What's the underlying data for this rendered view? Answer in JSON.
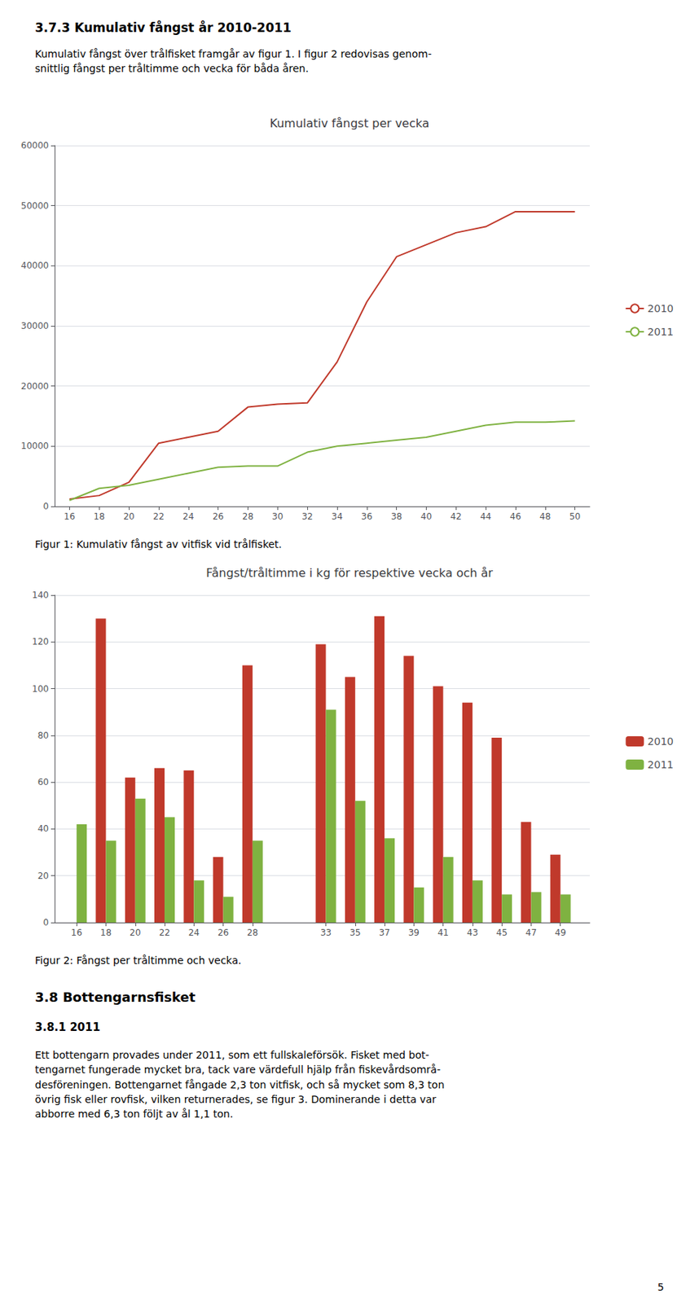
{
  "heading": "3.7.3   Kumulativ fångst år 2010-2011",
  "intro_text": "Kumulativ fångst över trålfisket framgår av figur 1. I figur 2 redovisas genom-\nsnittlig fångst per tråltimme och vecka för båda åren.",
  "chart_data": [
    {
      "type": "line",
      "title": "Kumulativ fångst per vecka",
      "x": [
        16,
        18,
        20,
        22,
        24,
        26,
        28,
        30,
        32,
        34,
        36,
        38,
        40,
        42,
        44,
        46,
        48,
        50
      ],
      "series": [
        {
          "name": "2010",
          "color": "#c0392b",
          "values": [
            1200,
            1800,
            4000,
            10500,
            11500,
            12500,
            16500,
            17000,
            17200,
            24000,
            34000,
            41500,
            43500,
            45500,
            46500,
            49000,
            49000,
            49000
          ]
        },
        {
          "name": "2011",
          "color": "#7fb241",
          "values": [
            1000,
            3000,
            3500,
            4500,
            5500,
            6500,
            6700,
            6700,
            9000,
            10000,
            10500,
            11000,
            11500,
            12500,
            13500,
            14000,
            14000,
            14200
          ]
        }
      ],
      "xlim": [
        15,
        51
      ],
      "xticks": [
        16,
        18,
        20,
        22,
        24,
        26,
        28,
        30,
        32,
        34,
        36,
        38,
        40,
        42,
        44,
        46,
        48,
        50
      ],
      "ylim": [
        0,
        60000
      ],
      "yticks": [
        0,
        10000,
        20000,
        30000,
        40000,
        50000,
        60000
      ],
      "grid": true,
      "legend": "right",
      "caption": "Figur 1: Kumulativ fångst av vitfisk vid trålfisket."
    },
    {
      "type": "bar",
      "title": "Fångst/tråltimme i kg för respektive vecka och år",
      "x": [
        16,
        18,
        20,
        22,
        24,
        26,
        28,
        33,
        35,
        37,
        39,
        41,
        43,
        45,
        47,
        49
      ],
      "series": [
        {
          "name": "2010",
          "color": "#c0392b",
          "values": [
            0,
            130,
            62,
            66,
            65,
            28,
            110,
            119,
            105,
            131,
            114,
            101,
            94,
            79,
            43,
            29
          ]
        },
        {
          "name": "2011",
          "color": "#7fb241",
          "values": [
            42,
            35,
            53,
            45,
            18,
            11,
            35,
            91,
            52,
            36,
            15,
            28,
            18,
            12,
            13,
            12
          ]
        }
      ],
      "xlim": [
        14.5,
        51
      ],
      "xticks": [
        16,
        18,
        20,
        22,
        24,
        26,
        28,
        33,
        35,
        37,
        39,
        41,
        43,
        45,
        47,
        49
      ],
      "ylim": [
        0,
        140
      ],
      "yticks": [
        0,
        20,
        40,
        60,
        80,
        100,
        120,
        140
      ],
      "grid": true,
      "legend": "right",
      "caption": "Figur 2: Fångst per tråltimme och vecka."
    }
  ],
  "section_heading": "3.8   Bottengarnsfisket",
  "subsection_heading": "3.8.1   2011",
  "body_text": "Ett bottengarn provades under 2011, som ett fullskaleförsök. Fisket med bot-\ntengarnet fungerade mycket bra, tack vare värdefull hjälp från fiskevårdsområ-\ndesföreningen. Bottengarnet fångade 2,3 ton vitfisk, och så mycket som 8,3 ton\növrig fisk eller rovfisk, vilken returnerades, se figur 3. Dominerande i detta var\nabborre med 6,3 ton följt av ål 1,1 ton.",
  "page_number": "5"
}
